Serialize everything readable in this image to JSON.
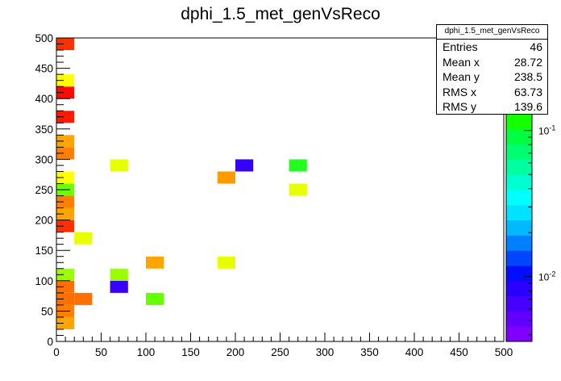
{
  "chart_data": {
    "type": "heatmap",
    "title": "dphi_1.5_met_genVsReco",
    "xlim": [
      0,
      500
    ],
    "ylim": [
      0,
      500
    ],
    "bin_width": 20,
    "x_ticks": [
      0,
      50,
      100,
      150,
      200,
      250,
      300,
      350,
      400,
      450,
      500
    ],
    "y_ticks": [
      0,
      50,
      100,
      150,
      200,
      250,
      300,
      350,
      400,
      450,
      500
    ],
    "z_scale": "log",
    "z_tick_labels": [
      {
        "base": "10",
        "exp": "-1",
        "value": 0.1
      },
      {
        "base": "10",
        "exp": "-2",
        "value": 0.01
      }
    ],
    "palette": [
      "#7f00ff",
      "#6200ff",
      "#4600ff",
      "#2a00ff",
      "#000eff",
      "#0046ff",
      "#007fff",
      "#00b8ff",
      "#00e2ff",
      "#00ffff",
      "#00ffd0",
      "#00ffa0",
      "#00ff70",
      "#00ff40",
      "#14ff00",
      "#50ff00",
      "#8cff00",
      "#b8ff00",
      "#e2ff00",
      "#ffff00"
    ],
    "bins": [
      {
        "x": 10,
        "y": 30,
        "color": "#ffa500"
      },
      {
        "x": 10,
        "y": 50,
        "color": "#ff8000"
      },
      {
        "x": 10,
        "y": 70,
        "color": "#ff7000"
      },
      {
        "x": 30,
        "y": 70,
        "color": "#ff7000"
      },
      {
        "x": 10,
        "y": 90,
        "color": "#ff7000"
      },
      {
        "x": 70,
        "y": 90,
        "color": "#3600ff"
      },
      {
        "x": 110,
        "y": 70,
        "color": "#66ff00"
      },
      {
        "x": 10,
        "y": 110,
        "color": "#9aff00"
      },
      {
        "x": 70,
        "y": 110,
        "color": "#9aff00"
      },
      {
        "x": 110,
        "y": 130,
        "color": "#ffa500"
      },
      {
        "x": 190,
        "y": 130,
        "color": "#e8ff00"
      },
      {
        "x": 30,
        "y": 170,
        "color": "#e8ff00"
      },
      {
        "x": 10,
        "y": 190,
        "color": "#ff3000"
      },
      {
        "x": 10,
        "y": 210,
        "color": "#ffa500"
      },
      {
        "x": 10,
        "y": 230,
        "color": "#ff8000"
      },
      {
        "x": 10,
        "y": 250,
        "color": "#6cff00"
      },
      {
        "x": 10,
        "y": 270,
        "color": "#ffff00"
      },
      {
        "x": 70,
        "y": 290,
        "color": "#e8ff00"
      },
      {
        "x": 190,
        "y": 270,
        "color": "#ff9a00"
      },
      {
        "x": 210,
        "y": 290,
        "color": "#3600ff"
      },
      {
        "x": 270,
        "y": 290,
        "color": "#20ff20"
      },
      {
        "x": 270,
        "y": 250,
        "color": "#e8ff00"
      },
      {
        "x": 10,
        "y": 310,
        "color": "#ff8000"
      },
      {
        "x": 10,
        "y": 330,
        "color": "#ffa500"
      },
      {
        "x": 10,
        "y": 370,
        "color": "#ff1a00"
      },
      {
        "x": 10,
        "y": 410,
        "color": "#ff0a00"
      },
      {
        "x": 10,
        "y": 430,
        "color": "#ffff00"
      },
      {
        "x": 10,
        "y": 490,
        "color": "#ff3000"
      }
    ]
  },
  "stats": {
    "name": "dphi_1.5_met_genVsReco",
    "rows": [
      {
        "label": "Entries",
        "value": "46"
      },
      {
        "label": "Mean x",
        "value": "28.72"
      },
      {
        "label": "Mean y",
        "value": "238.5"
      },
      {
        "label": "RMS x",
        "value": "63.73"
      },
      {
        "label": "RMS y",
        "value": "139.6"
      }
    ]
  }
}
